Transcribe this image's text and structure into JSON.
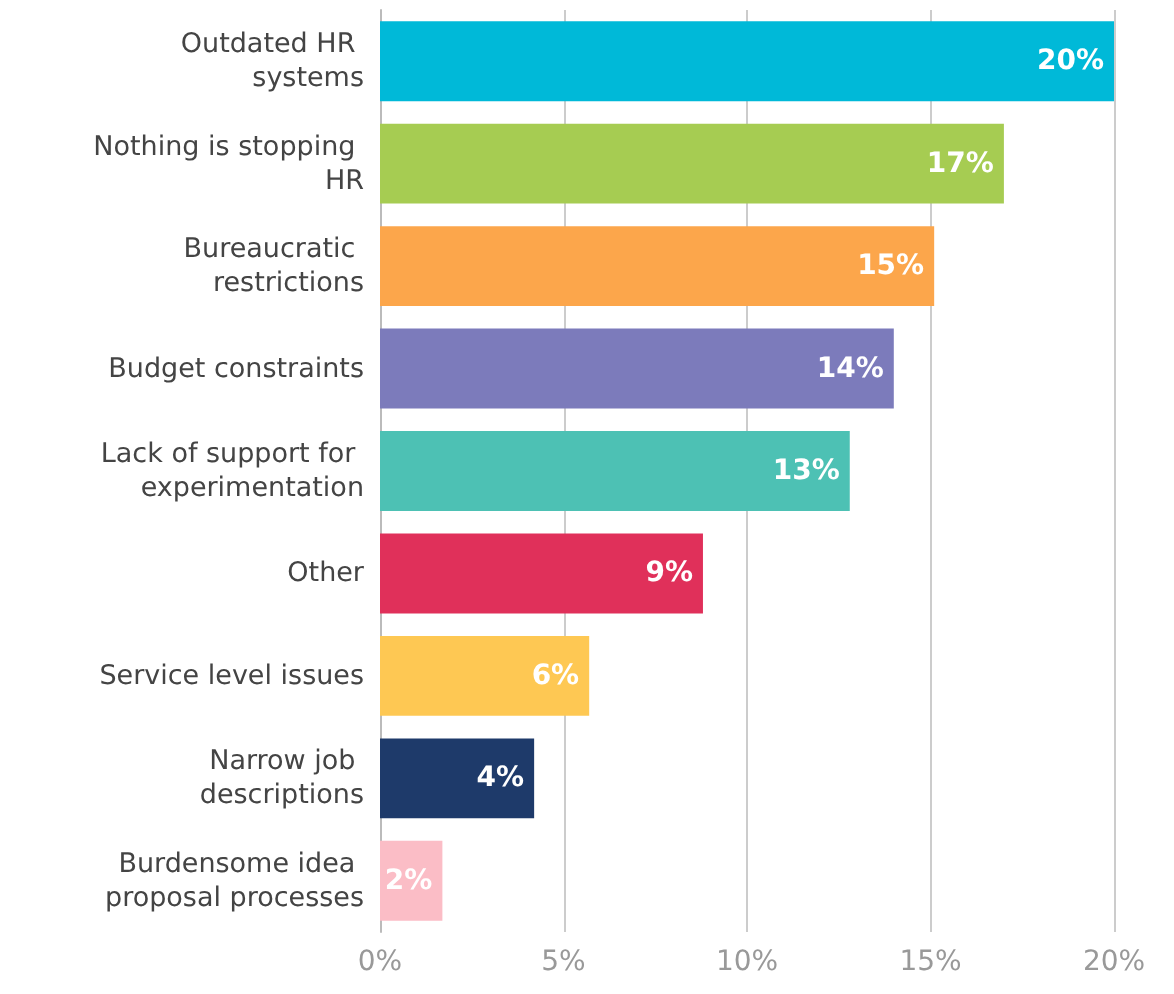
{
  "chart_data": {
    "type": "bar",
    "orientation": "horizontal",
    "categories": [
      "Outdated HR systems",
      "Nothing is stopping HR",
      "Bureaucratic restrictions",
      "Budget constraints",
      "Lack of support for experimentation",
      "Other",
      "Service level issues",
      "Narrow job descriptions",
      "Burdensome idea proposal processes"
    ],
    "values": [
      20,
      17,
      15.1,
      14,
      12.8,
      8.8,
      5.7,
      4.2,
      1.7
    ],
    "value_labels": [
      "20%",
      "17%",
      "15%",
      "14%",
      "13%",
      "9%",
      "6%",
      "4%",
      "2%"
    ],
    "colors": [
      "#00b9d8",
      "#a6cc52",
      "#fca64b",
      "#7c7bbb",
      "#4dc1b4",
      "#e0305a",
      "#fec853",
      "#1e3a6a",
      "#fbbdc6"
    ],
    "xlim": [
      0,
      20
    ],
    "xticks": [
      {
        "value": 0,
        "label": "0%"
      },
      {
        "value": 5,
        "label": "5%"
      },
      {
        "value": 10,
        "label": "10%"
      },
      {
        "value": 15,
        "label": "15%"
      },
      {
        "value": 20,
        "label": "20%"
      }
    ],
    "grid": "x"
  }
}
